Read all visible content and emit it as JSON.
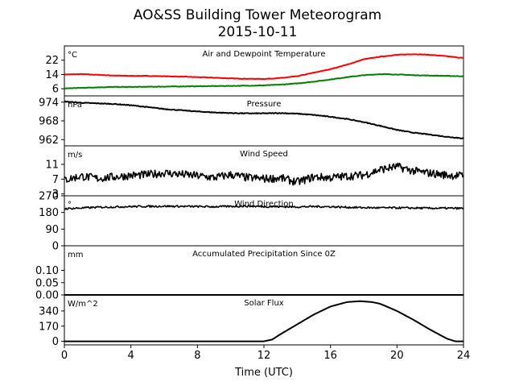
{
  "figure": {
    "title": "AO&SS Building Tower Meteorogram",
    "subtitle": "2015-10-11",
    "xlabel": "Time (UTC)",
    "x_ticks": [
      "0",
      "4",
      "8",
      "12",
      "16",
      "20",
      "24"
    ]
  },
  "chart_data": [
    {
      "type": "line",
      "title": "Air and Dewpoint Temperature",
      "unit": "°C",
      "x_range": [
        0,
        24
      ],
      "ylim": [
        2,
        30
      ],
      "y_ticks": [
        6,
        14,
        22
      ],
      "y_tick_labels": [
        "6",
        "14",
        "22"
      ],
      "series": [
        {
          "color": "#ff0000",
          "x": [
            0,
            1,
            2,
            3,
            4,
            5,
            6,
            7,
            8,
            9,
            10,
            11,
            12,
            13,
            14,
            15,
            16,
            17,
            18,
            19,
            20,
            21,
            22,
            23,
            24
          ],
          "values": [
            14.0,
            14.2,
            13.8,
            13.4,
            13.2,
            13.2,
            13.0,
            12.8,
            12.5,
            12.2,
            11.8,
            11.6,
            11.5,
            12.0,
            13.0,
            15.0,
            17.0,
            19.5,
            22.5,
            24.0,
            25.0,
            25.4,
            25.0,
            24.2,
            23.2
          ]
        },
        {
          "color": "#008000",
          "x": [
            0,
            1,
            2,
            3,
            4,
            5,
            6,
            7,
            8,
            9,
            10,
            11,
            12,
            13,
            14,
            15,
            16,
            17,
            18,
            19,
            20,
            21,
            22,
            23,
            24
          ],
          "values": [
            6.2,
            6.5,
            6.8,
            7.0,
            7.0,
            7.1,
            7.2,
            7.3,
            7.4,
            7.5,
            7.6,
            7.7,
            7.9,
            8.3,
            9.0,
            10.0,
            11.2,
            12.5,
            13.6,
            14.2,
            14.0,
            13.6,
            13.4,
            13.2,
            13.0
          ]
        }
      ]
    },
    {
      "type": "line",
      "title": "Pressure",
      "unit": "hPa",
      "x_range": [
        0,
        24
      ],
      "ylim": [
        960,
        976
      ],
      "y_ticks": [
        962,
        968,
        974
      ],
      "y_tick_labels": [
        "962",
        "968",
        "974"
      ],
      "series": [
        {
          "color": "#000000",
          "x": [
            0,
            1,
            2,
            3,
            4,
            5,
            6,
            7,
            8,
            9,
            10,
            11,
            12,
            13,
            14,
            15,
            16,
            17,
            18,
            19,
            20,
            21,
            22,
            23,
            24
          ],
          "values": [
            974.2,
            973.8,
            973.6,
            973.4,
            973.0,
            972.4,
            971.8,
            971.4,
            971.0,
            970.7,
            970.5,
            970.4,
            970.4,
            970.5,
            970.3,
            969.9,
            969.3,
            968.6,
            967.6,
            966.4,
            965.1,
            964.2,
            963.6,
            962.9,
            962.4
          ]
        }
      ]
    },
    {
      "type": "line",
      "title": "Wind Speed",
      "unit": "m/s",
      "x_range": [
        0,
        24
      ],
      "ylim": [
        2.5,
        16
      ],
      "y_ticks": [
        3,
        7,
        11
      ],
      "y_tick_labels": [
        "3",
        "7",
        "11"
      ],
      "series": [
        {
          "color": "#000000",
          "x": [
            0,
            1,
            2,
            3,
            4,
            5,
            6,
            7,
            8,
            9,
            10,
            11,
            12,
            13,
            14,
            15,
            16,
            17,
            18,
            19,
            20,
            21,
            22,
            23,
            24
          ],
          "values": [
            6.8,
            7.8,
            7.2,
            7.6,
            8.0,
            8.2,
            8.7,
            8.3,
            7.9,
            7.4,
            8.2,
            7.4,
            7.1,
            7.3,
            6.2,
            7.6,
            7.4,
            7.8,
            8.1,
            9.6,
            10.4,
            9.2,
            8.6,
            8.1,
            7.9
          ]
        }
      ]
    },
    {
      "type": "line",
      "title": "Wind Direction",
      "unit": "°",
      "x_range": [
        0,
        24
      ],
      "ylim": [
        0,
        270
      ],
      "y_ticks": [
        0,
        90,
        180,
        270
      ],
      "y_tick_labels": [
        "0",
        "90",
        "180",
        "270"
      ],
      "series": [
        {
          "color": "#000000",
          "x": [
            0,
            1,
            2,
            3,
            4,
            5,
            6,
            7,
            8,
            9,
            10,
            11,
            12,
            13,
            14,
            15,
            16,
            17,
            18,
            19,
            20,
            21,
            22,
            23,
            24
          ],
          "values": [
            200,
            204,
            208,
            210,
            212,
            213,
            214,
            213,
            212,
            211,
            213,
            214,
            212,
            211,
            210,
            212,
            211,
            208,
            206,
            205,
            205,
            204,
            203,
            203,
            202
          ]
        }
      ]
    },
    {
      "type": "line",
      "title": "Accumulated Precipitation Since 0Z",
      "unit": "mm",
      "x_range": [
        0,
        24
      ],
      "ylim": [
        0,
        0.2
      ],
      "y_ticks": [
        0,
        0.05,
        0.1
      ],
      "y_tick_labels": [
        "0.00",
        "0.05",
        "0.10"
      ],
      "series": [
        {
          "color": "#000000",
          "x": [
            0,
            24
          ],
          "values": [
            0,
            0
          ]
        }
      ]
    },
    {
      "type": "line",
      "title": "Solar Flux",
      "unit": "W/m^2",
      "x_range": [
        0,
        24
      ],
      "ylim": [
        -40,
        520
      ],
      "y_ticks": [
        0,
        170,
        340
      ],
      "y_tick_labels": [
        "0",
        "170",
        "340"
      ],
      "series": [
        {
          "color": "#000000",
          "x": [
            0,
            12,
            12.5,
            13,
            14,
            15,
            16,
            17,
            17.8,
            18.5,
            19,
            20,
            21,
            22,
            23,
            23.5,
            24
          ],
          "values": [
            0,
            0,
            20,
            80,
            190,
            300,
            390,
            440,
            450,
            440,
            420,
            340,
            240,
            130,
            30,
            0,
            0
          ]
        }
      ]
    }
  ]
}
